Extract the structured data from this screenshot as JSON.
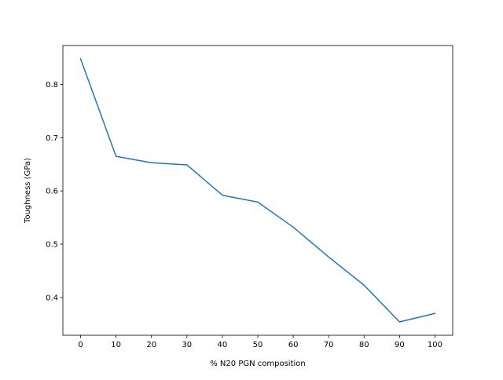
{
  "chart_data": {
    "type": "line",
    "title": "",
    "xlabel": "% N20 PGN composition",
    "ylabel": "Toughness (GPa)",
    "x": [
      0,
      10,
      20,
      30,
      40,
      50,
      60,
      70,
      80,
      90,
      100
    ],
    "series": [
      {
        "color": "#1f77b4",
        "values": [
          0.848,
          0.665,
          0.653,
          0.649,
          0.592,
          0.579,
          0.532,
          0.476,
          0.423,
          0.354,
          0.37
        ]
      }
    ],
    "xlim": [
      -5,
      105
    ],
    "ylim": [
      0.329,
      0.873
    ],
    "xticks": [
      0,
      10,
      20,
      30,
      40,
      50,
      60,
      70,
      80,
      90,
      100
    ],
    "yticks": [
      0.4,
      0.5,
      0.6,
      0.7,
      0.8
    ],
    "ytick_labels": [
      "0.4",
      "0.5",
      "0.6",
      "0.7",
      "0.8"
    ],
    "grid": false,
    "legend": "none"
  }
}
